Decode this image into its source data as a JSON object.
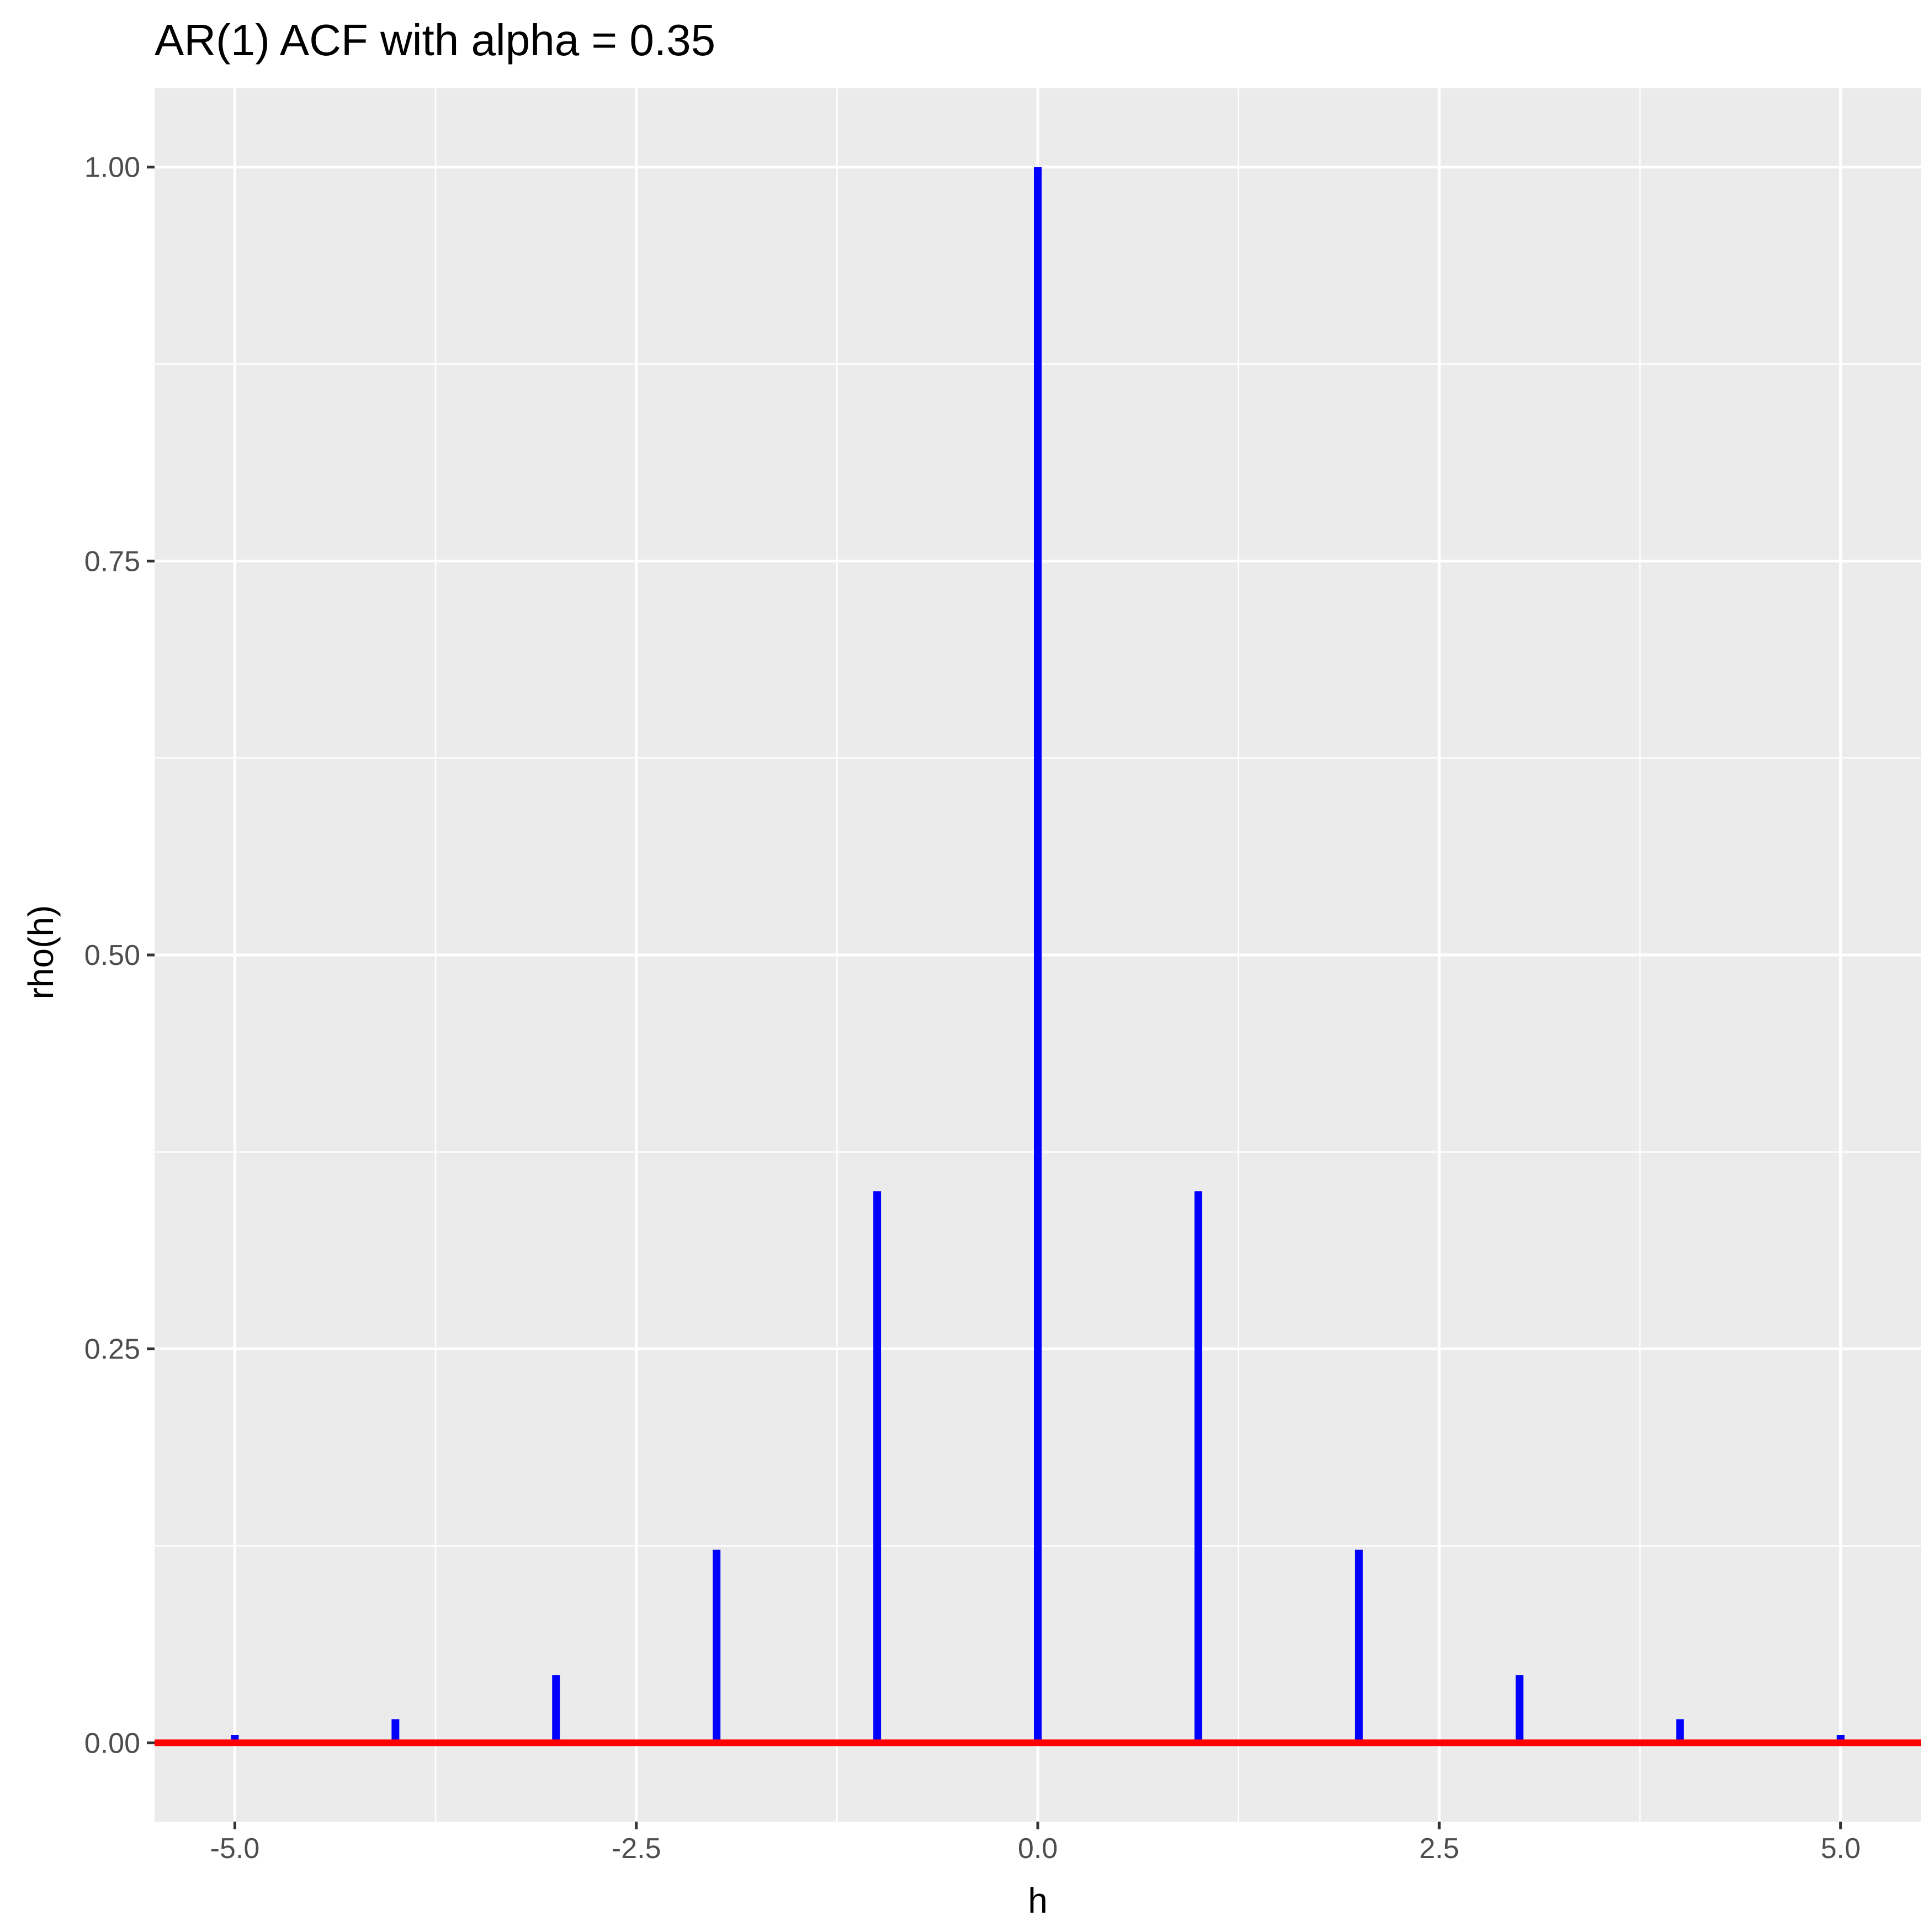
{
  "chart_data": {
    "type": "bar",
    "title": "AR(1) ACF with alpha = 0.35",
    "xlabel": "h",
    "ylabel": "rho(h)",
    "xlim": [
      -5.5,
      5.5
    ],
    "ylim": [
      -0.05,
      1.05
    ],
    "x_ticks": [
      -5.0,
      -2.5,
      0.0,
      2.5,
      5.0
    ],
    "x_tick_labels": [
      "-5.0",
      "-2.5",
      "0.0",
      "2.5",
      "5.0"
    ],
    "y_ticks": [
      0.0,
      0.25,
      0.5,
      0.75,
      1.0
    ],
    "y_tick_labels": [
      "0.00",
      "0.25",
      "0.50",
      "0.75",
      "1.00"
    ],
    "grid": true,
    "x": [
      -5,
      -4,
      -3,
      -2,
      -1,
      0,
      1,
      2,
      3,
      4,
      5
    ],
    "values": [
      0.005,
      0.015,
      0.043,
      0.1225,
      0.35,
      1.0,
      0.35,
      0.1225,
      0.043,
      0.015,
      0.005
    ],
    "bar_color": "#0000ff",
    "reference_line": {
      "y": 0,
      "color": "#ff0000"
    },
    "panel_background": "#ebebeb",
    "grid_color": "#ffffff"
  }
}
